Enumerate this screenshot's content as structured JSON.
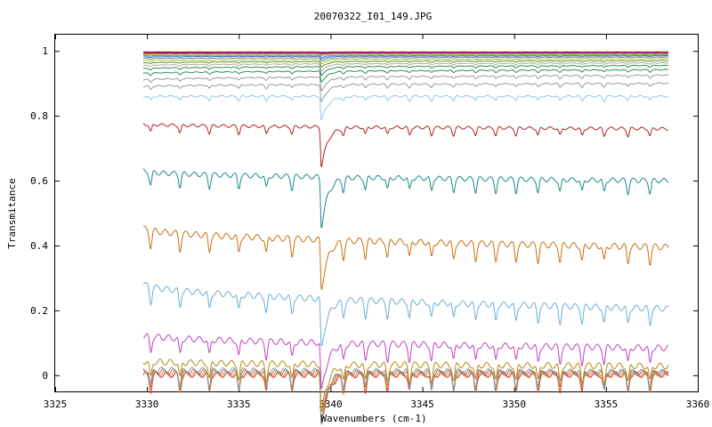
{
  "chart_data": {
    "type": "line",
    "title": "20070322_I01_149.JPG",
    "xlabel": "Wavenumbers (cm-1)",
    "ylabel": "Transmitance",
    "xlim": [
      3325,
      3360
    ],
    "ylim": [
      -0.05,
      1.05
    ],
    "xticks": [
      3325,
      3330,
      3335,
      3340,
      3345,
      3350,
      3355,
      3360
    ],
    "xtick_labels": [
      "3325",
      "3330",
      "3335",
      "3340",
      "3345",
      "3350",
      "3355",
      "3360"
    ],
    "yticks": [
      0,
      0.2,
      0.4,
      0.6,
      0.8,
      1
    ],
    "ytick_labels": [
      "0",
      "0.2",
      "0.4",
      "0.6",
      "0.8",
      "1"
    ],
    "grid": false,
    "x_range_data": [
      3329.8,
      3358.4
    ],
    "main_dip_x": 3339.5,
    "dip_positions": [
      3330.2,
      3331.8,
      3333.4,
      3335.0,
      3336.5,
      3337.9,
      3340.7,
      3341.9,
      3343.1,
      3344.3,
      3345.5,
      3346.7,
      3347.9,
      3349.0,
      3350.1,
      3351.3,
      3352.5,
      3353.7,
      3354.9,
      3356.2,
      3357.4
    ],
    "series": [
      {
        "color": "#d62728",
        "start": 0.002,
        "end": 0.002
      },
      {
        "color": "#ff7f0e",
        "start": 0.006,
        "end": 0.004
      },
      {
        "color": "#7f7f7f",
        "start": 0.012,
        "end": 0.007
      },
      {
        "color": "#999999",
        "start": 0.018,
        "end": 0.009
      },
      {
        "color": "#b8860b",
        "start": 0.044,
        "end": 0.028
      },
      {
        "color": "#c040c0",
        "start": 0.126,
        "end": 0.084
      },
      {
        "color": "#6baed6",
        "start": 0.285,
        "end": 0.205
      },
      {
        "color": "#c87010",
        "start": 0.455,
        "end": 0.395
      },
      {
        "color": "#1a8a8a",
        "start": 0.63,
        "end": 0.6
      },
      {
        "color": "#b22222",
        "start": 0.775,
        "end": 0.76
      },
      {
        "color": "#8ecae6",
        "start": 0.86,
        "end": 0.86
      },
      {
        "color": "#999999",
        "start": 0.89,
        "end": 0.9
      },
      {
        "color": "#999999",
        "start": 0.91,
        "end": 0.925
      },
      {
        "color": "#2e8b57",
        "start": 0.93,
        "end": 0.942
      },
      {
        "color": "#2e8b57",
        "start": 0.945,
        "end": 0.955
      },
      {
        "color": "#aaaaaa",
        "start": 0.955,
        "end": 0.963
      },
      {
        "color": "#6b8e23",
        "start": 0.963,
        "end": 0.97
      },
      {
        "color": "#9acd32",
        "start": 0.97,
        "end": 0.976
      },
      {
        "color": "#888888",
        "start": 0.976,
        "end": 0.981
      },
      {
        "color": "#4169e1",
        "start": 0.981,
        "end": 0.985
      },
      {
        "color": "#20b2aa",
        "start": 0.985,
        "end": 0.988
      },
      {
        "color": "#daa520",
        "start": 0.989,
        "end": 0.991
      },
      {
        "color": "#c71585",
        "start": 0.992,
        "end": 0.994
      },
      {
        "color": "#000080",
        "start": 0.995,
        "end": 0.996
      },
      {
        "color": "#d62728",
        "start": 0.997,
        "end": 0.997
      }
    ]
  }
}
